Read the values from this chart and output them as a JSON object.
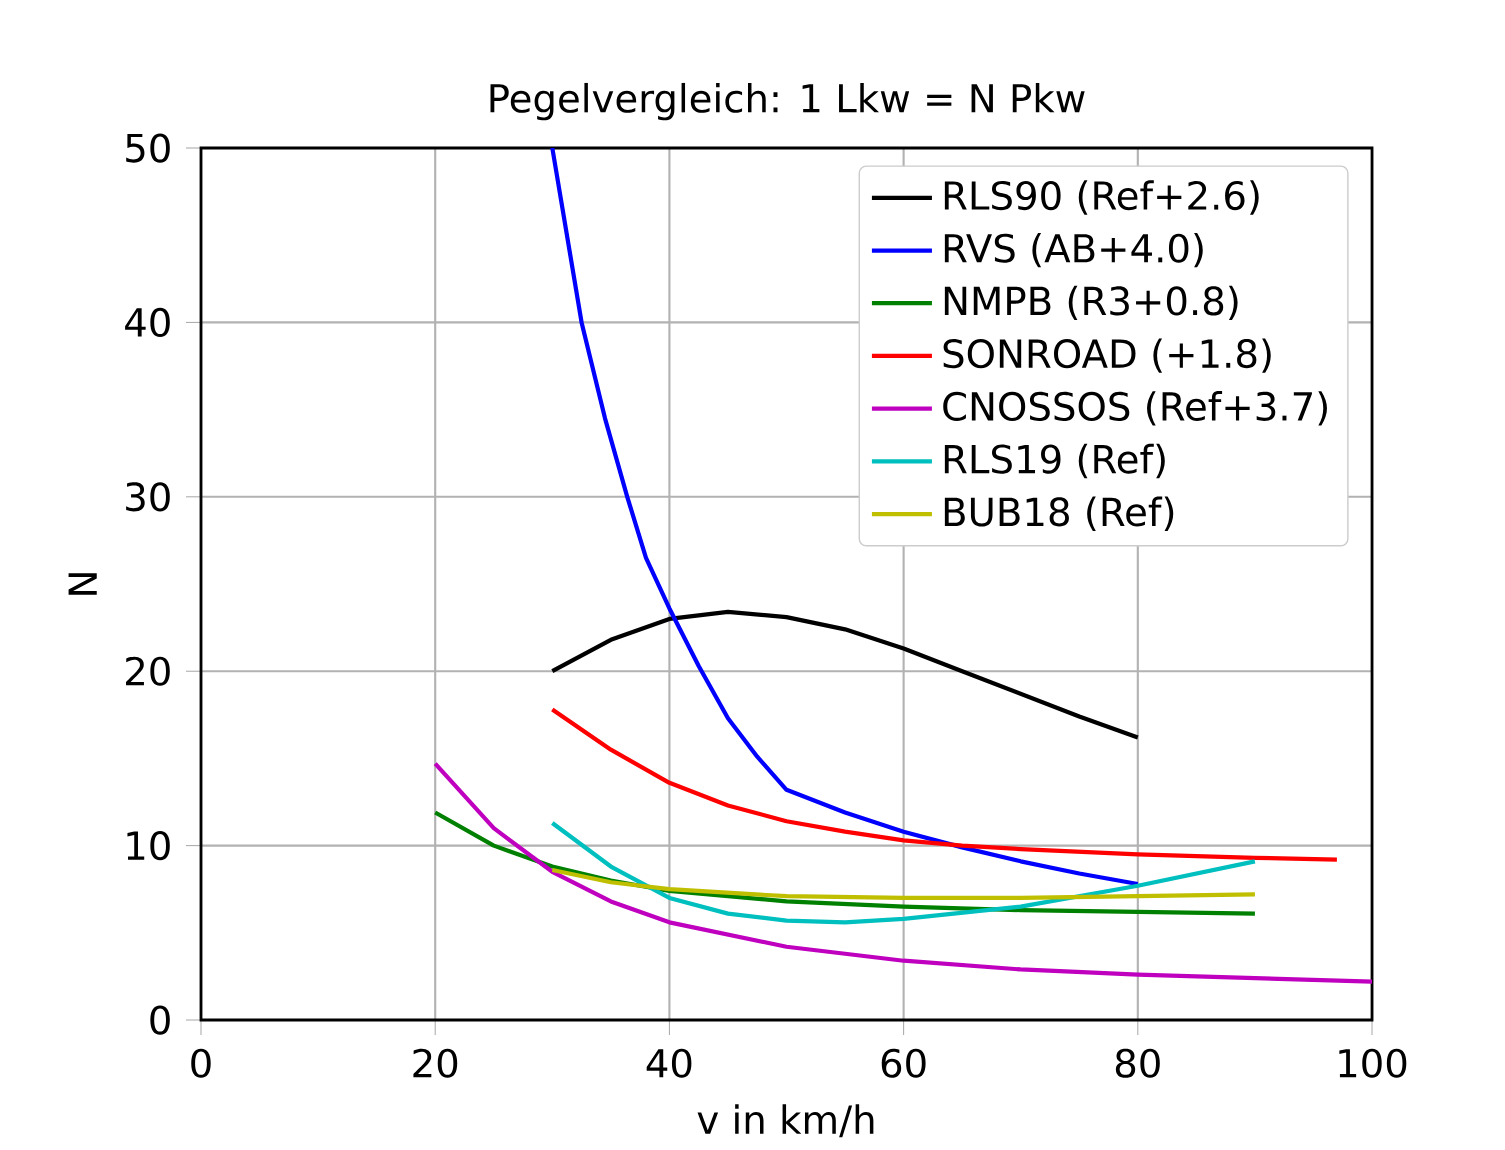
{
  "chart_data": {
    "type": "line",
    "title": "Pegelvergleich: 1 Lkw = N Pkw",
    "xlabel": "v in km/h",
    "ylabel": "N",
    "xlim": [
      0,
      100
    ],
    "ylim": [
      0,
      50
    ],
    "xticks": [
      0,
      20,
      40,
      60,
      80,
      100
    ],
    "yticks": [
      0,
      10,
      20,
      30,
      40,
      50
    ],
    "grid": true,
    "legend": "top right",
    "marker": "none",
    "line_style": "solid",
    "series": [
      {
        "name": "RLS90 (Ref+2.6)",
        "color": "#000000",
        "x": [
          30,
          35,
          40,
          45,
          50,
          55,
          60,
          65,
          70,
          75,
          80
        ],
        "values": [
          20.0,
          21.8,
          23.0,
          23.4,
          23.1,
          22.4,
          21.3,
          20.0,
          18.7,
          17.4,
          16.2
        ]
      },
      {
        "name": "RVS (AB+4.0)",
        "color": "#0000ff",
        "x": [
          30,
          32.5,
          34.5,
          36.4,
          38,
          40,
          42.5,
          45,
          47.5,
          50,
          55,
          60,
          65,
          70,
          75,
          80
        ],
        "values": [
          50,
          40,
          34.5,
          30,
          26.5,
          23.6,
          20.3,
          17.3,
          15.1,
          13.2,
          11.9,
          10.8,
          9.9,
          9.1,
          8.4,
          7.8
        ]
      },
      {
        "name": "NMPB (R3+0.8)",
        "color": "#008000",
        "x": [
          20,
          25,
          30,
          35,
          40,
          50,
          60,
          70,
          80,
          90
        ],
        "values": [
          11.9,
          10.0,
          8.8,
          8.0,
          7.4,
          6.8,
          6.5,
          6.3,
          6.2,
          6.1
        ]
      },
      {
        "name": "SONROAD (+1.8)",
        "color": "#ff0000",
        "x": [
          30,
          35,
          40,
          45,
          50,
          55,
          60,
          65,
          70,
          80,
          90,
          97
        ],
        "values": [
          17.8,
          15.5,
          13.6,
          12.3,
          11.4,
          10.8,
          10.3,
          10.0,
          9.8,
          9.5,
          9.3,
          9.2
        ]
      },
      {
        "name": "CNOSSOS (Ref+3.7)",
        "color": "#bf00bf",
        "x": [
          20,
          25,
          30,
          35,
          40,
          50,
          60,
          70,
          80,
          90,
          100
        ],
        "values": [
          14.7,
          11.0,
          8.5,
          6.8,
          5.6,
          4.2,
          3.4,
          2.9,
          2.6,
          2.4,
          2.2
        ]
      },
      {
        "name": "RLS19 (Ref)",
        "color": "#00bfbf",
        "x": [
          30,
          35,
          40,
          45,
          50,
          55,
          60,
          70,
          80,
          90
        ],
        "values": [
          11.3,
          8.8,
          7.0,
          6.1,
          5.7,
          5.6,
          5.8,
          6.5,
          7.7,
          9.1
        ]
      },
      {
        "name": "BUB18 (Ref)",
        "color": "#bfbf00",
        "x": [
          30,
          35,
          40,
          50,
          60,
          70,
          80,
          90
        ],
        "values": [
          8.6,
          7.9,
          7.5,
          7.1,
          7.0,
          7.0,
          7.1,
          7.2
        ]
      }
    ]
  }
}
